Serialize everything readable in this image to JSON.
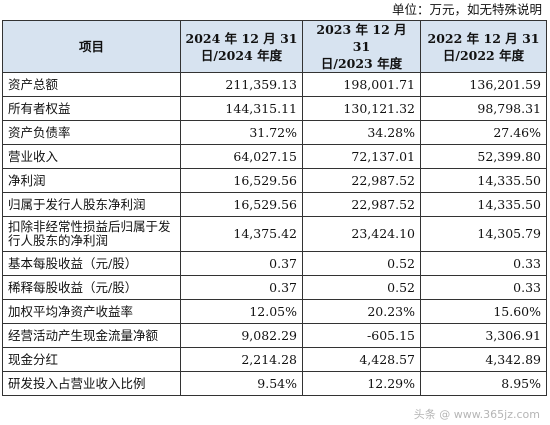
{
  "unit_note": "单位：万元，如无特殊说明",
  "headers": {
    "item": "项目",
    "col1_l1": "2024 年 12 月 31",
    "col1_l2": "日/2024 年度",
    "col2_l1": "2023 年 12 月 31",
    "col2_l2": "日/2023 年度",
    "col3_l1": "2022 年 12 月 31",
    "col3_l2": "日/2022 年度"
  },
  "rows": [
    {
      "label": "资产总额",
      "v1": "211,359.13",
      "v2": "198,001.71",
      "v3": "136,201.59"
    },
    {
      "label": "所有者权益",
      "v1": "144,315.11",
      "v2": "130,121.32",
      "v3": "98,798.31"
    },
    {
      "label": "资产负债率",
      "v1": "31.72%",
      "v2": "34.28%",
      "v3": "27.46%"
    },
    {
      "label": "营业收入",
      "v1": "64,027.15",
      "v2": "72,137.01",
      "v3": "52,399.80"
    },
    {
      "label": "净利润",
      "v1": "16,529.56",
      "v2": "22,987.52",
      "v3": "14,335.50"
    },
    {
      "label": "归属于发行人股东净利润",
      "v1": "16,529.56",
      "v2": "22,987.52",
      "v3": "14,335.50"
    },
    {
      "label": "扣除非经常性损益后归属于发行人股东的净利润",
      "v1": "14,375.42",
      "v2": "23,424.10",
      "v3": "14,305.79"
    },
    {
      "label": "基本每股收益（元/股）",
      "v1": "0.37",
      "v2": "0.52",
      "v3": "0.33"
    },
    {
      "label": "稀释每股收益（元/股）",
      "v1": "0.37",
      "v2": "0.52",
      "v3": "0.33"
    },
    {
      "label": "加权平均净资产收益率",
      "v1": "12.05%",
      "v2": "20.23%",
      "v3": "15.60%"
    },
    {
      "label": "经营活动产生现金流量净额",
      "v1": "9,082.29",
      "v2": "-605.15",
      "v3": "3,306.91"
    },
    {
      "label": "现金分红",
      "v1": "2,214.28",
      "v2": "4,428.57",
      "v3": "4,342.89"
    },
    {
      "label": "研发投入占营业收入比例",
      "v1": "9.54%",
      "v2": "12.29%",
      "v3": "8.95%"
    }
  ],
  "watermark": "头条 @ www.365jz.com"
}
